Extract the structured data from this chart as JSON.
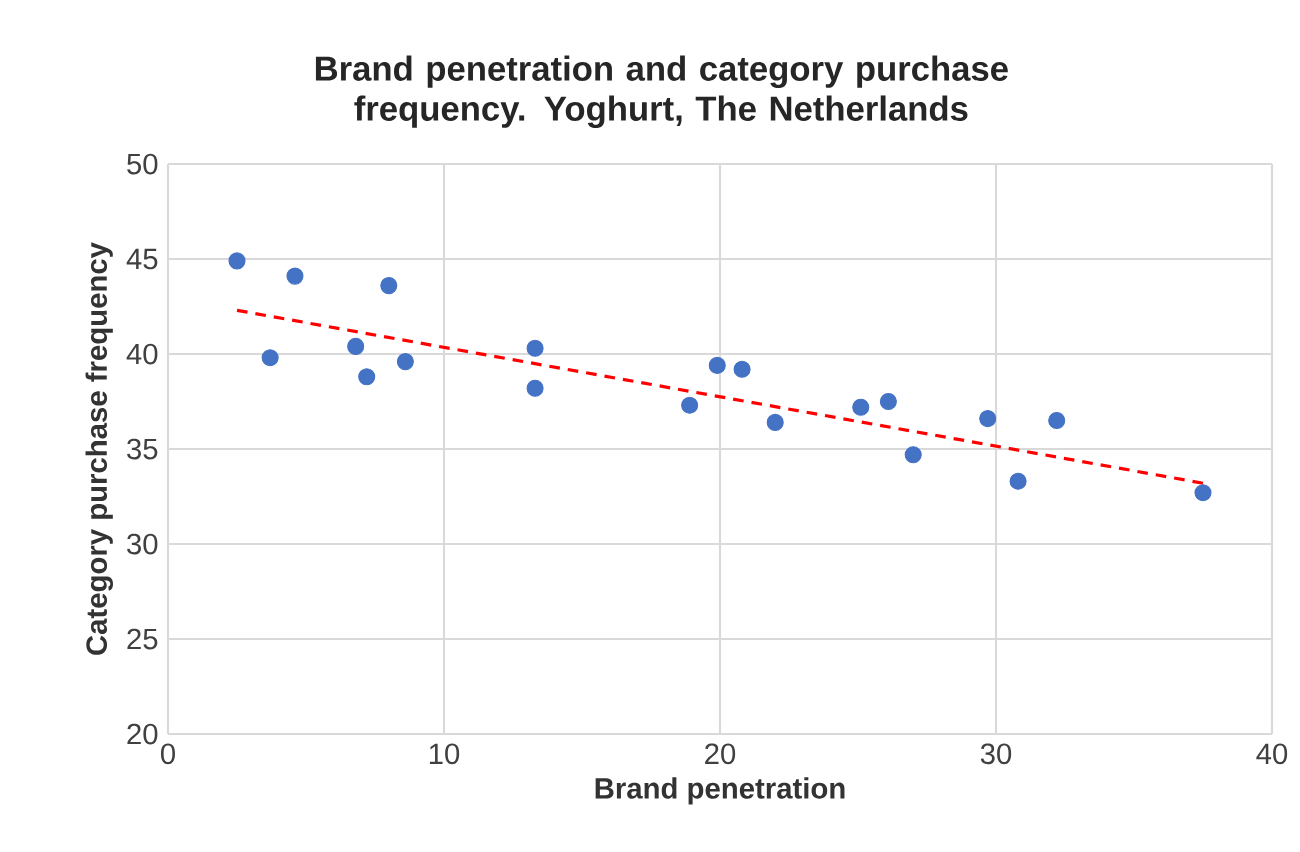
{
  "chart_data": {
    "type": "scatter",
    "title": "Brand penetration and category purchase frequency.  Yoghurt, The Netherlands",
    "xlabel": "Brand penetration",
    "ylabel": "Category purchase frequency",
    "xlim": [
      0,
      40
    ],
    "xticks": [
      0,
      10,
      20,
      30,
      40
    ],
    "ylim": [
      20,
      50
    ],
    "yticks": [
      20,
      25,
      30,
      35,
      40,
      45,
      50
    ],
    "grid": true,
    "series": [
      {
        "marker": "circle",
        "color": "#4472c4",
        "x": [
          2.5,
          3.7,
          4.6,
          6.8,
          7.2,
          8.0,
          8.6,
          13.3,
          13.3,
          18.9,
          19.9,
          20.8,
          22.0,
          25.1,
          26.1,
          27.0,
          29.7,
          30.8,
          32.2,
          37.5
        ],
        "values": [
          44.9,
          39.8,
          44.1,
          40.4,
          38.8,
          43.6,
          39.6,
          40.3,
          38.2,
          37.3,
          39.4,
          39.2,
          36.4,
          37.2,
          37.5,
          34.7,
          36.6,
          33.3,
          36.5,
          32.7
        ]
      },
      {
        "type": "line",
        "marker": "none",
        "color": "#ff0000",
        "line_style": "dashed",
        "x": [
          2.5,
          37.5
        ],
        "values": [
          42.3,
          33.2
        ]
      }
    ]
  }
}
